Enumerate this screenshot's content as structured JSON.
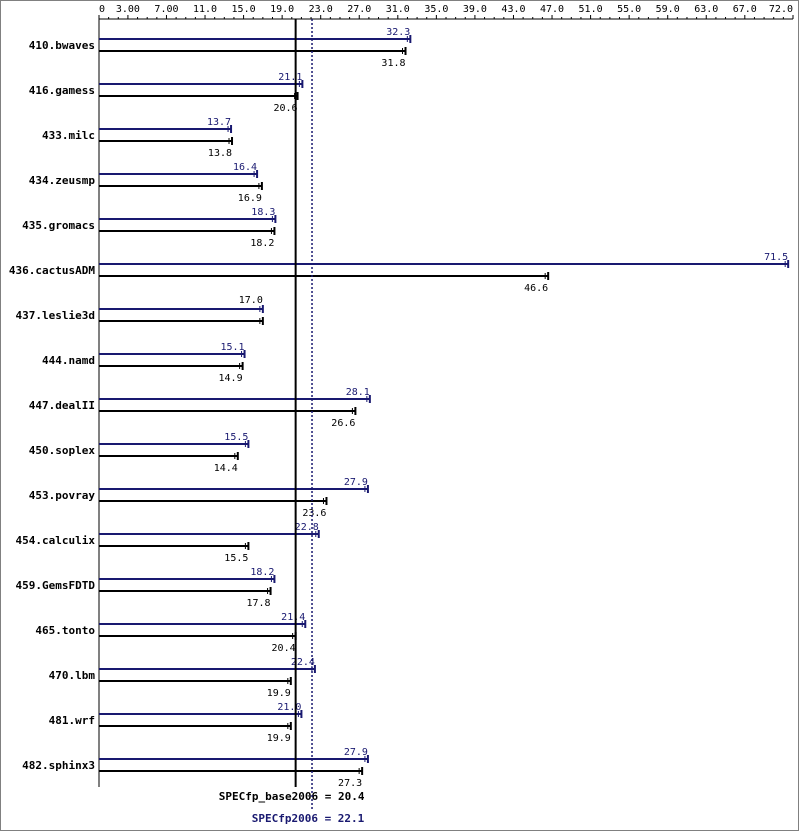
{
  "chart_data": {
    "type": "bar",
    "orientation": "horizontal",
    "xlim": [
      0,
      72.0
    ],
    "tick_values": [
      0,
      3.0,
      7.0,
      11.0,
      15.0,
      19.0,
      23.0,
      27.0,
      31.0,
      35.0,
      39.0,
      43.0,
      47.0,
      51.0,
      55.0,
      59.0,
      63.0,
      67.0,
      72.0
    ],
    "tick_labels": [
      "0",
      "3.00",
      "7.00",
      "11.0",
      "15.0",
      "19.0",
      "23.0",
      "27.0",
      "31.0",
      "35.0",
      "39.0",
      "43.0",
      "47.0",
      "51.0",
      "55.0",
      "59.0",
      "63.0",
      "67.0",
      "72.0"
    ],
    "categories": [
      "410.bwaves",
      "416.gamess",
      "433.milc",
      "434.zeusmp",
      "435.gromacs",
      "436.cactusADM",
      "437.leslie3d",
      "444.namd",
      "447.dealII",
      "450.soplex",
      "453.povray",
      "454.calculix",
      "459.GemsFDTD",
      "465.tonto",
      "470.lbm",
      "481.wrf",
      "482.sphinx3"
    ],
    "series": [
      {
        "key": "peak",
        "values": [
          32.3,
          21.1,
          13.7,
          16.4,
          18.3,
          71.5,
          17.0,
          15.1,
          28.1,
          15.5,
          27.9,
          22.8,
          18.2,
          21.4,
          22.4,
          21.0,
          27.9
        ],
        "labels": [
          "32.3",
          "21.1",
          "13.7",
          "16.4",
          "18.3",
          "71.5",
          "",
          "15.1",
          "28.1",
          "15.5",
          "27.9",
          "22.8",
          "18.2",
          "21.4",
          "22.4",
          "21.0",
          "27.9"
        ]
      },
      {
        "key": "base",
        "values": [
          31.8,
          20.6,
          13.8,
          16.9,
          18.2,
          46.6,
          17.0,
          14.9,
          26.6,
          14.4,
          23.6,
          15.5,
          17.8,
          20.4,
          19.9,
          19.9,
          27.3
        ],
        "labels": [
          "31.8",
          "20.6",
          "13.8",
          "16.9",
          "18.2",
          "46.6",
          "17.0",
          "14.9",
          "26.6",
          "14.4",
          "23.6",
          "15.5",
          "17.8",
          "20.4",
          "19.9",
          "19.9",
          "27.3"
        ]
      }
    ],
    "reference_lines": [
      {
        "key": "base_mean",
        "value": 20.4,
        "label": "SPECfp_base2006 = 20.4",
        "style": "solid"
      },
      {
        "key": "peak_mean",
        "value": 22.1,
        "label": "SPECfp2006 = 22.1",
        "style": "dotted"
      }
    ],
    "grid": false,
    "legend": "none"
  },
  "colors": {
    "peak": "#191970",
    "base": "#000000",
    "axis": "#000000",
    "frame": "#808080"
  }
}
